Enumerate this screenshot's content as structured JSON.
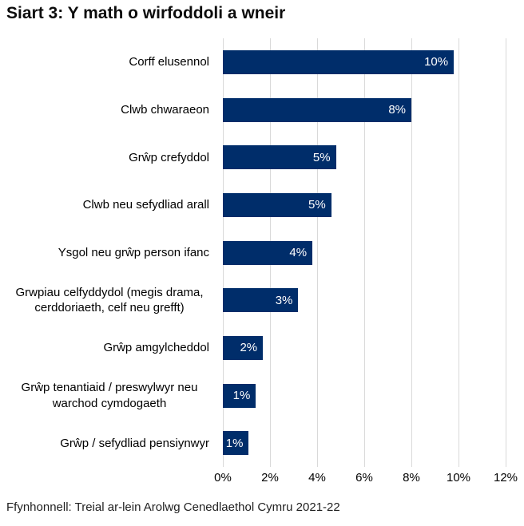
{
  "title": "Siart 3: Y math o wirfoddoli a wneir",
  "source": "Ffynhonnell: Treial ar-lein Arolwg Cenedlaethol Cymru 2021-22",
  "colors": {
    "bar": "#002d6a",
    "gridline": "#d9d9d9",
    "title_text": "#0c0c0c",
    "category_text": "#000000",
    "value_text": "#ffffff",
    "source_text": "#1f1f1f",
    "background": "#ffffff"
  },
  "chart_data": {
    "type": "bar",
    "orientation": "horizontal",
    "title": "Siart 3: Y math o wirfoddoli a wneir",
    "categories": [
      "Corff elusennol",
      "Clwb chwaraeon",
      "Grŵp crefyddol",
      "Clwb neu sefydliad arall",
      "Ysgol neu grŵp person ifanc",
      "Grwpiau celfyddydol (megis drama, cerddoriaeth, celf neu grefft)",
      "Grŵp amgylcheddol",
      "Grŵp tenantiaid / preswylwyr neu warchod cymdogaeth",
      "Grŵp / sefydliad pensiynwyr"
    ],
    "values": [
      10,
      8,
      5,
      5,
      4,
      3,
      2,
      1,
      1
    ],
    "value_labels": [
      "10%",
      "8%",
      "5%",
      "5%",
      "4%",
      "3%",
      "2%",
      "1%",
      "1%"
    ],
    "values_est_pct": [
      9.8,
      8.0,
      4.8,
      4.6,
      3.8,
      3.2,
      1.7,
      1.4,
      1.1
    ],
    "xlabel": "",
    "ylabel": "",
    "x_ticks": [
      "0%",
      "2%",
      "4%",
      "6%",
      "8%",
      "10%",
      "12%"
    ],
    "x_tick_values": [
      0,
      2,
      4,
      6,
      8,
      10,
      12
    ],
    "xlim": [
      0,
      12
    ],
    "grid": "vertical-only",
    "legend": "none",
    "bar_label_position": "inside-end"
  }
}
